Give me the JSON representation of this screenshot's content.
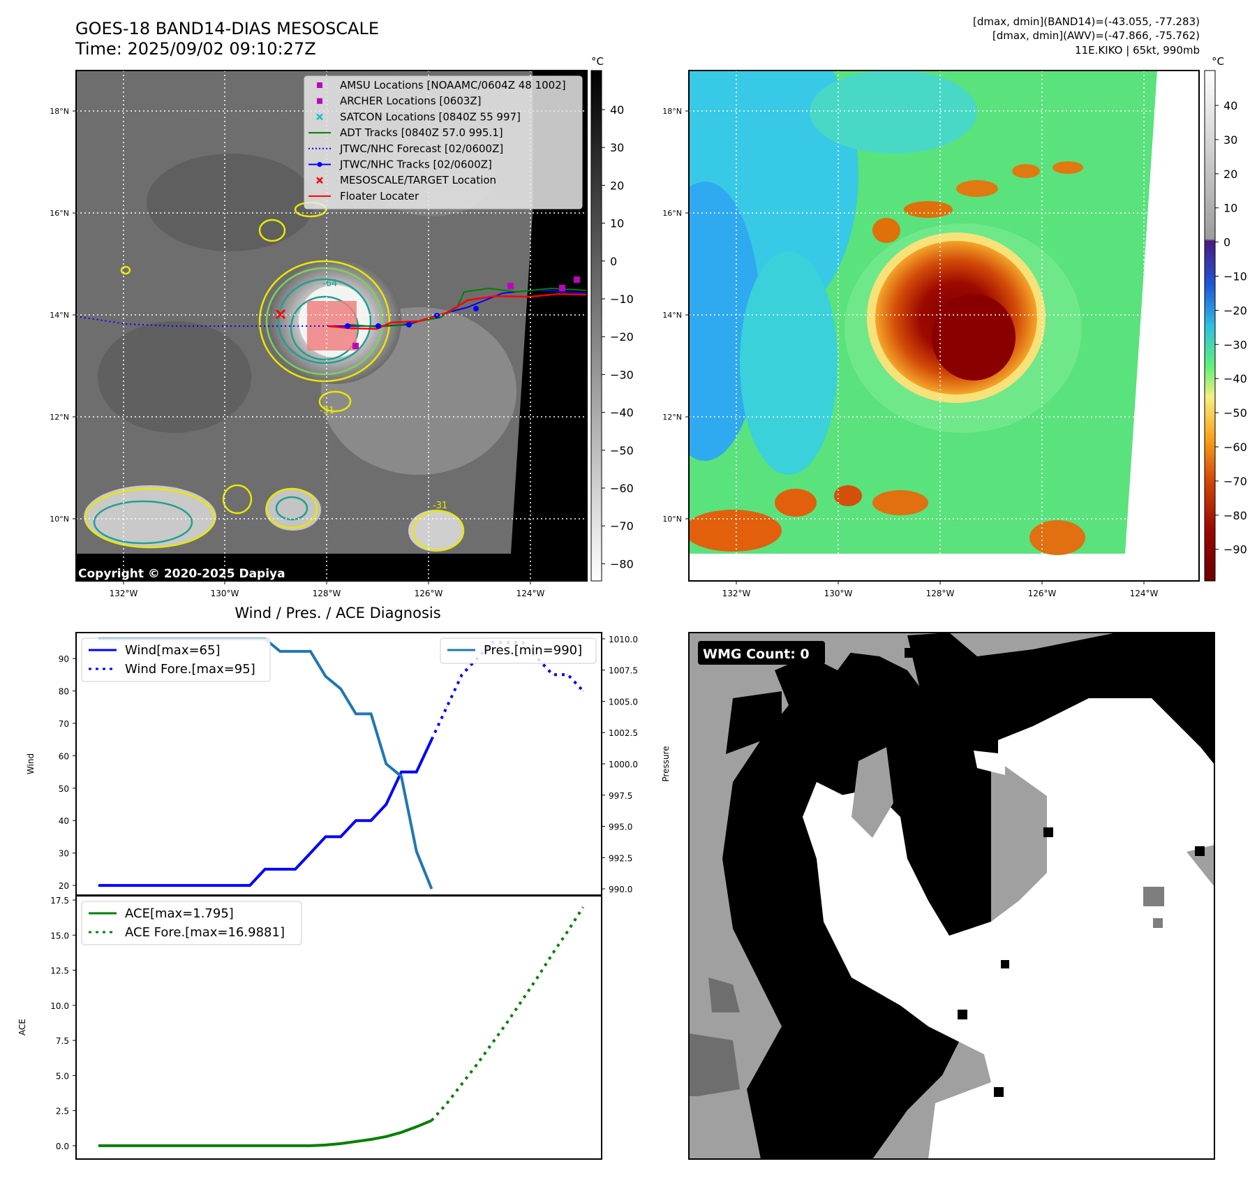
{
  "header": {
    "title": "GOES-18 BAND14-DIAS MESOSCALE",
    "time": "Time: 2025/09/02 09:10:27Z",
    "stat_band14": "[dmax, dmin](BAND14)=(-43.055, -77.283)",
    "stat_awv": "[dmax, dmin](AWV)=(-47.866, -75.762)",
    "storm": "11E.KIKO | 65kt, 990mb"
  },
  "ir_panel": {
    "unit": "°C",
    "copyright": "Copyright © 2020-2025 Dapiya",
    "lon_ticks": [
      "132°W",
      "130°W",
      "128°W",
      "126°W",
      "124°W"
    ],
    "lat_ticks": [
      "18°N",
      "16°N",
      "14°N",
      "12°N",
      "10°N"
    ],
    "colorbar_ticks": [
      "40",
      "30",
      "20",
      "10",
      "0",
      "−10",
      "−20",
      "−30",
      "−40",
      "−50",
      "−60",
      "−70",
      "−80"
    ],
    "contour_labels": [
      "-51",
      "-64",
      "-51",
      "-31",
      "-31"
    ],
    "legend": [
      {
        "label": "AMSU Locations [NOAAMC/0604Z 48 1002]",
        "color": "#c000c0",
        "kind": "square"
      },
      {
        "label": "ARCHER Locations [0603Z]",
        "color": "#c000c0",
        "kind": "square"
      },
      {
        "label": "SATCON Locations [0840Z 55 997]",
        "color": "#17becf",
        "kind": "x"
      },
      {
        "label": "ADT Tracks [0840Z 57.0 995.1]",
        "color": "#008000",
        "kind": "line"
      },
      {
        "label": "JTWC/NHC Forecast [02/0600Z]",
        "color": "#0000ff",
        "kind": "dotted"
      },
      {
        "label": "JTWC/NHC Tracks [02/0600Z]",
        "color": "#0000ff",
        "kind": "line-dot"
      },
      {
        "label": "MESOSCALE/TARGET Location",
        "color": "#ff0000",
        "kind": "x"
      },
      {
        "label": "Floater Locater",
        "color": "#ff0000",
        "kind": "line"
      }
    ]
  },
  "awv_panel": {
    "unit": "°C",
    "lon_ticks": [
      "132°W",
      "130°W",
      "128°W",
      "126°W",
      "124°W"
    ],
    "lat_ticks": [
      "18°N",
      "16°N",
      "14°N",
      "12°N",
      "10°N"
    ],
    "colorbar_ticks": [
      "40",
      "30",
      "20",
      "10",
      "0",
      "−10",
      "−20",
      "−30",
      "−40",
      "−50",
      "−60",
      "−70",
      "−80",
      "−90"
    ]
  },
  "wmg_panel": {
    "label": "WMG Count: 0"
  },
  "chart_data": [
    {
      "type": "line",
      "title": "Wind / Pres. / ACE Diagnosis",
      "ylabel": "Wind",
      "ylabel_right": "Pressure",
      "ylim": [
        17,
        98
      ],
      "ylim_right": [
        989.5,
        1010.5
      ],
      "yticks": [
        20,
        30,
        40,
        50,
        60,
        70,
        80,
        90
      ],
      "yticks_right": [
        990.0,
        992.5,
        995.0,
        997.5,
        1000.0,
        1002.5,
        1005.0,
        1007.5,
        1010.0
      ],
      "x": [
        0,
        1,
        2,
        3,
        4,
        5,
        6,
        7,
        8,
        9,
        10,
        11,
        12,
        13,
        14,
        15,
        16,
        17,
        18,
        19,
        20,
        21,
        22,
        23,
        24,
        25,
        26,
        27,
        28,
        29,
        30,
        31,
        32
      ],
      "series": [
        {
          "name": "Wind[max=65]",
          "axis": "left",
          "color": "#0000ff",
          "style": "solid",
          "x": [
            0,
            1,
            2,
            3,
            4,
            5,
            6,
            7,
            8,
            9,
            10,
            11,
            12,
            13,
            14,
            15,
            16,
            17,
            18,
            19,
            20,
            21,
            22
          ],
          "values": [
            20,
            20,
            20,
            20,
            20,
            20,
            20,
            20,
            20,
            20,
            20,
            25,
            25,
            25,
            30,
            35,
            35,
            40,
            40,
            45,
            55,
            55,
            65
          ]
        },
        {
          "name": "Wind Fore.[max=95]",
          "axis": "left",
          "color": "#0000ff",
          "style": "dotted",
          "x": [
            22,
            23,
            24,
            25,
            26,
            27,
            28,
            29,
            30,
            31,
            32
          ],
          "values": [
            65,
            75,
            85,
            90,
            95,
            95,
            95,
            90,
            85,
            85,
            80
          ]
        },
        {
          "name": "Pres.[min=990]",
          "axis": "right",
          "color": "#1f77b4",
          "style": "solid",
          "x": [
            0,
            1,
            2,
            3,
            4,
            5,
            6,
            7,
            8,
            9,
            10,
            11,
            12,
            13,
            14,
            15,
            16,
            17,
            18,
            19,
            20,
            21,
            22
          ],
          "values": [
            1010,
            1010,
            1010,
            1010,
            1010,
            1010,
            1010,
            1010,
            1010,
            1010,
            1010,
            1010,
            1009,
            1009,
            1009,
            1007,
            1006,
            1004,
            1004,
            1000,
            999,
            993,
            990
          ]
        }
      ]
    },
    {
      "type": "line",
      "ylabel": "ACE",
      "ylim": [
        -0.9,
        17.8
      ],
      "yticks": [
        0.0,
        2.5,
        5.0,
        7.5,
        10.0,
        12.5,
        15.0,
        17.5
      ],
      "series": [
        {
          "name": "ACE[max=1.795]",
          "color": "#008000",
          "style": "solid",
          "x": [
            0,
            1,
            2,
            3,
            4,
            5,
            6,
            7,
            8,
            9,
            10,
            11,
            12,
            13,
            14,
            15,
            16,
            17,
            18,
            19,
            20,
            21,
            22
          ],
          "values": [
            0,
            0,
            0,
            0,
            0,
            0,
            0,
            0,
            0,
            0,
            0,
            0,
            0,
            0,
            0,
            0.05,
            0.15,
            0.3,
            0.45,
            0.65,
            0.95,
            1.35,
            1.795
          ]
        },
        {
          "name": "ACE Fore.[max=16.9881]",
          "color": "#008000",
          "style": "dotted",
          "x": [
            22,
            23,
            24,
            25,
            26,
            27,
            28,
            29,
            30,
            31,
            32
          ],
          "values": [
            1.795,
            3.0,
            4.4,
            5.8,
            7.3,
            8.8,
            10.4,
            12.0,
            13.7,
            15.3,
            16.9881
          ]
        }
      ]
    }
  ]
}
